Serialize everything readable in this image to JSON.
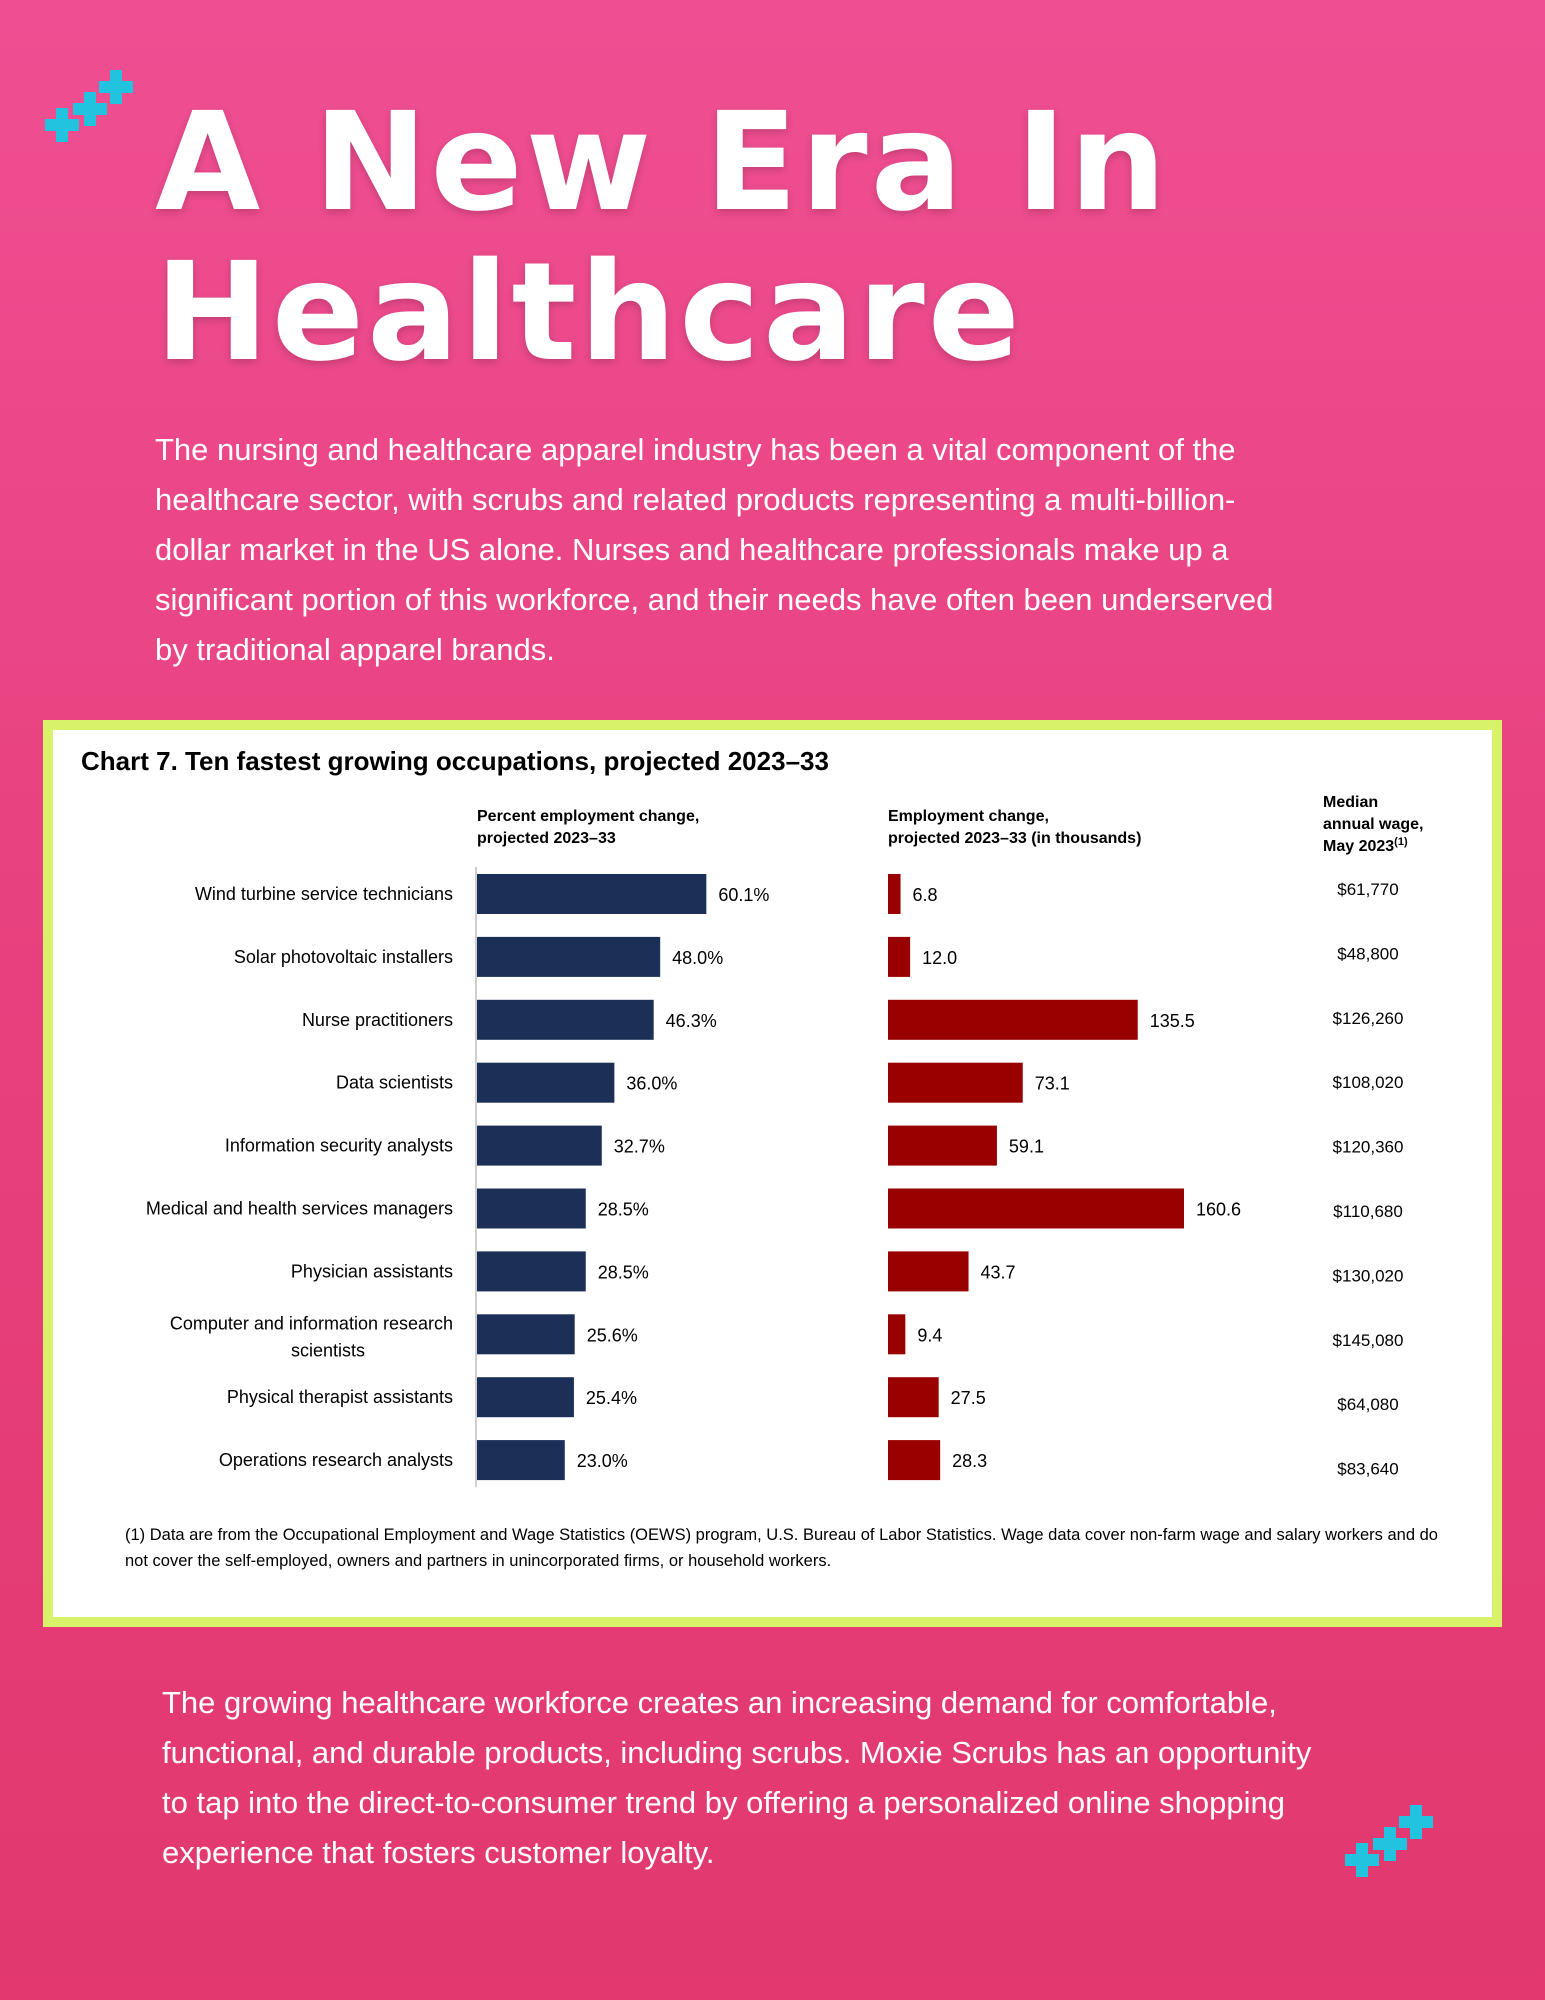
{
  "page": {
    "title_line1": "A New Era In",
    "title_line2": "Healthcare",
    "intro": "The nursing and healthcare apparel industry has been a vital component of the healthcare sector, with scrubs and related products representing a multi-billion-dollar market in the US alone. Nurses and healthcare professionals make up a significant portion of this workforce, and their needs have often been underserved by traditional apparel brands.",
    "closing": "The growing healthcare workforce creates an increasing demand for comfortable, functional, and durable products, including scrubs. Moxie Scrubs has an opportunity to tap into the direct-to-consumer trend by offering a personalized online shopping experience that fosters customer loyalty.",
    "colors": {
      "background": "#e8417f",
      "frame": "#d8f269",
      "plus": "#22c3de"
    }
  },
  "chart_data": {
    "type": "bar",
    "title": "Chart 7. Ten fastest growing occupations, projected 2023–33",
    "categories": [
      [
        "Wind turbine service technicians"
      ],
      [
        "Solar photovoltaic installers"
      ],
      [
        "Nurse practitioners"
      ],
      [
        "Data scientists"
      ],
      [
        "Information security analysts"
      ],
      [
        "Medical and health services managers"
      ],
      [
        "Physician assistants"
      ],
      [
        "Computer and information research",
        "scientists"
      ],
      [
        "Physical therapist assistants"
      ],
      [
        "Operations research analysts"
      ]
    ],
    "series": [
      {
        "name": "Percent employment change, projected 2023–33",
        "header": [
          "Percent employment change,",
          "projected 2023–33"
        ],
        "values": [
          60.1,
          48.0,
          46.3,
          36.0,
          32.7,
          28.5,
          28.5,
          25.6,
          25.4,
          23.0
        ],
        "labels": [
          "60.1%",
          "48.0%",
          "46.3%",
          "36.0%",
          "32.7%",
          "28.5%",
          "28.5%",
          "25.6%",
          "25.4%",
          "23.0%"
        ],
        "color": "#1c2f57",
        "xlim": [
          0,
          100
        ]
      },
      {
        "name": "Employment change, projected 2023–33 (in thousands)",
        "header": [
          "Employment change,",
          "projected 2023–33 (in thousands)"
        ],
        "values": [
          6.8,
          12.0,
          135.5,
          73.1,
          59.1,
          160.6,
          43.7,
          9.4,
          27.5,
          28.3
        ],
        "labels": [
          "6.8",
          "12.0",
          "135.5",
          "73.1",
          "59.1",
          "160.6",
          "43.7",
          "9.4",
          "27.5",
          "28.3"
        ],
        "color": "#990000",
        "xlim": [
          0,
          160.6
        ]
      }
    ],
    "wage_column": {
      "header": [
        "Median",
        "annual wage,",
        "May 2023"
      ],
      "header_superscript": "(1)",
      "values": [
        "$61,770",
        "$48,800",
        "$126,260",
        "$108,020",
        "$120,360",
        "$110,680",
        "$130,020",
        "$145,080",
        "$64,080",
        "$83,640"
      ]
    },
    "footnote": "(1) Data are from the Occupational Employment and Wage Statistics (OEWS) program, U.S. Bureau of Labor Statistics. Wage data cover non-farm wage and salary workers and do not cover the self-employed, owners and partners in unincorporated firms, or household workers."
  }
}
